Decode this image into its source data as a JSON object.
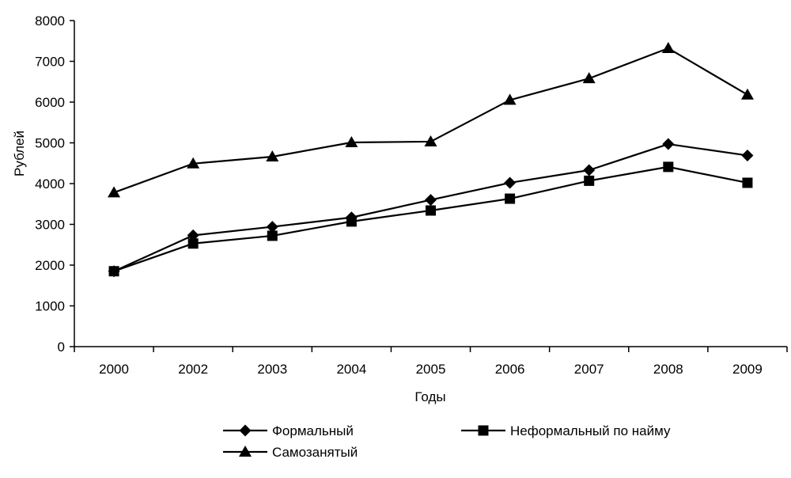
{
  "chart_data": {
    "type": "line",
    "xlabel": "Годы",
    "ylabel": "Рублей",
    "ylim": [
      0,
      8000
    ],
    "yticks": [
      "0",
      "1000",
      "2000",
      "3000",
      "4000",
      "5000",
      "6000",
      "7000",
      "8000"
    ],
    "categories": [
      "2000",
      "2002",
      "2003",
      "2004",
      "2005",
      "2006",
      "2007",
      "2008",
      "2009"
    ],
    "grid": false,
    "legend_position": "bottom",
    "series": [
      {
        "name": "Формальный",
        "marker": "diamond",
        "values": [
          1850,
          2730,
          2940,
          3170,
          3600,
          4020,
          4330,
          4970,
          4690
        ]
      },
      {
        "name": "Неформальный по найму",
        "marker": "square",
        "values": [
          1850,
          2530,
          2720,
          3070,
          3340,
          3630,
          4070,
          4410,
          4020
        ]
      },
      {
        "name": "Самозанятый",
        "marker": "triangle",
        "values": [
          3780,
          4490,
          4660,
          5010,
          5030,
          6050,
          6580,
          7320,
          6180
        ]
      }
    ]
  },
  "colors": {
    "line": "#000000",
    "background": "#ffffff"
  }
}
